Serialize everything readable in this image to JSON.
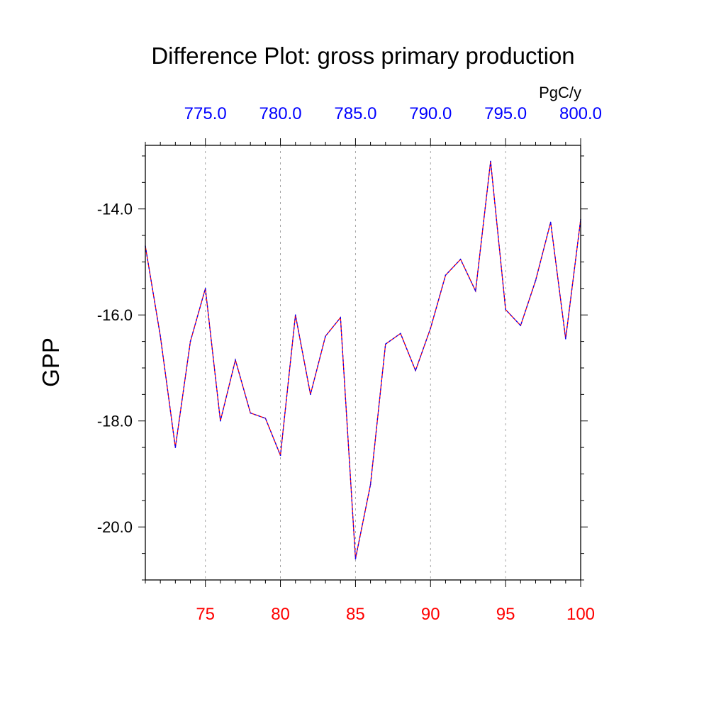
{
  "colors": {
    "bottom_axis": "#ff0000",
    "top_axis": "#0000ff",
    "series_red": "#ff0000",
    "series_blue": "#0000ff",
    "grid": "#9a9a9a"
  },
  "chart_data": {
    "type": "line",
    "title": "Difference Plot: gross primary production",
    "ylabel": "GPP",
    "units": "PgC/y",
    "xlim": [
      71,
      100
    ],
    "ylim": [
      -21,
      -12.8
    ],
    "top_xlim": [
      771,
      800
    ],
    "grid": true,
    "y_ticks": [
      -14.0,
      -16.0,
      -18.0,
      -20.0
    ],
    "y_tick_labels": [
      "-14.0",
      "-16.0",
      "-18.0",
      "-20.0"
    ],
    "x_ticks": [
      75,
      80,
      85,
      90,
      95,
      100
    ],
    "x_tick_labels": [
      "75",
      "80",
      "85",
      "90",
      "95",
      "100"
    ],
    "top_x_ticks": [
      775,
      780,
      785,
      790,
      795,
      800
    ],
    "top_x_tick_labels": [
      "775.0",
      "780.0",
      "785.0",
      "790.0",
      "795.0",
      "800.0"
    ],
    "x": [
      71,
      72,
      73,
      74,
      75,
      76,
      77,
      78,
      79,
      80,
      81,
      82,
      83,
      84,
      85,
      86,
      87,
      88,
      89,
      90,
      91,
      92,
      93,
      94,
      95,
      96,
      97,
      98,
      99,
      100
    ],
    "series": [
      {
        "values": [
          -14.7,
          -16.4,
          -18.5,
          -16.5,
          -15.5,
          -18.0,
          -16.85,
          -17.85,
          -17.95,
          -18.65,
          -16.0,
          -17.5,
          -16.4,
          -16.05,
          -20.6,
          -19.2,
          -16.55,
          -16.35,
          -17.05,
          -16.25,
          -15.25,
          -14.95,
          -15.55,
          -13.1,
          -15.9,
          -16.2,
          -15.35,
          -14.25,
          -16.45,
          -14.2
        ]
      }
    ]
  }
}
